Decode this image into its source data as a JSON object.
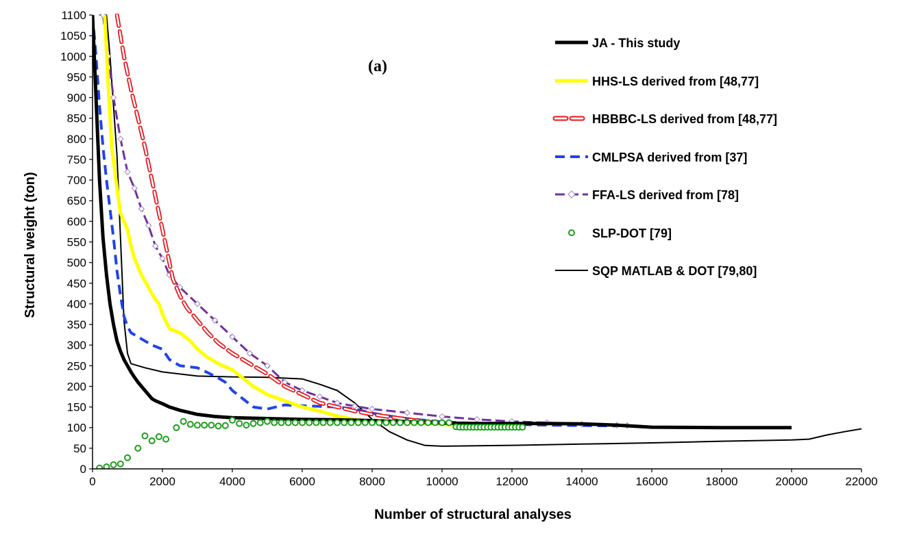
{
  "chart_data": {
    "type": "line",
    "title": "",
    "panel_label": "(a)",
    "xlabel": "Number of structural analyses",
    "ylabel": "Structural weight (ton)",
    "xlim": [
      0,
      22000
    ],
    "ylim": [
      0,
      1100
    ],
    "xticks": [
      0,
      2000,
      4000,
      6000,
      8000,
      10000,
      12000,
      14000,
      16000,
      18000,
      20000,
      22000
    ],
    "yticks": [
      0,
      50,
      100,
      150,
      200,
      250,
      300,
      350,
      400,
      450,
      500,
      550,
      600,
      650,
      700,
      750,
      800,
      850,
      900,
      950,
      1000,
      1050,
      1100
    ],
    "grid": false,
    "legend_position": "top-right",
    "series": [
      {
        "name": "JA - This study",
        "color": "#000000",
        "style": "thick-solid",
        "points": [
          [
            0,
            1100
          ],
          [
            100,
            900
          ],
          [
            200,
            700
          ],
          [
            300,
            560
          ],
          [
            400,
            470
          ],
          [
            500,
            400
          ],
          [
            600,
            350
          ],
          [
            700,
            310
          ],
          [
            800,
            285
          ],
          [
            900,
            265
          ],
          [
            1000,
            250
          ],
          [
            1100,
            235
          ],
          [
            1200,
            222
          ],
          [
            1300,
            210
          ],
          [
            1400,
            200
          ],
          [
            1500,
            190
          ],
          [
            1600,
            180
          ],
          [
            1700,
            170
          ],
          [
            1800,
            165
          ],
          [
            2000,
            158
          ],
          [
            2200,
            150
          ],
          [
            2500,
            142
          ],
          [
            3000,
            132
          ],
          [
            3500,
            127
          ],
          [
            4000,
            124
          ],
          [
            5000,
            122
          ],
          [
            6000,
            120
          ],
          [
            7000,
            119
          ],
          [
            8000,
            117
          ],
          [
            9000,
            114
          ],
          [
            10000,
            111
          ],
          [
            11000,
            110
          ],
          [
            12000,
            110
          ],
          [
            13000,
            110
          ],
          [
            14000,
            109
          ],
          [
            15000,
            106
          ],
          [
            16000,
            101
          ],
          [
            18000,
            100
          ],
          [
            20000,
            100
          ]
        ]
      },
      {
        "name": "HHS-LS derived from [48,77]",
        "color": "#ffff00",
        "style": "thick-solid",
        "points": [
          [
            350,
            1100
          ],
          [
            450,
            930
          ],
          [
            550,
            780
          ],
          [
            700,
            680
          ],
          [
            800,
            620
          ],
          [
            900,
            600
          ],
          [
            1000,
            580
          ],
          [
            1100,
            540
          ],
          [
            1200,
            510
          ],
          [
            1400,
            470
          ],
          [
            1600,
            440
          ],
          [
            1800,
            410
          ],
          [
            1900,
            400
          ],
          [
            2000,
            375
          ],
          [
            2200,
            340
          ],
          [
            2500,
            330
          ],
          [
            2800,
            310
          ],
          [
            3000,
            290
          ],
          [
            3300,
            270
          ],
          [
            3600,
            255
          ],
          [
            4000,
            240
          ],
          [
            4300,
            220
          ],
          [
            4600,
            200
          ],
          [
            5000,
            180
          ],
          [
            5500,
            165
          ],
          [
            6000,
            150
          ],
          [
            6500,
            140
          ],
          [
            7000,
            128
          ],
          [
            7500,
            120
          ],
          [
            8000,
            115
          ],
          [
            9000,
            112
          ],
          [
            10000,
            108
          ],
          [
            10500,
            105
          ]
        ]
      },
      {
        "name": "HBBBC-LS derived from [48,77]",
        "color": "#e8141b",
        "style": "thick-dashed-outline",
        "points": [
          [
            700,
            1100
          ],
          [
            900,
            1000
          ],
          [
            1100,
            920
          ],
          [
            1300,
            850
          ],
          [
            1500,
            780
          ],
          [
            1700,
            700
          ],
          [
            1800,
            660
          ],
          [
            1900,
            620
          ],
          [
            2000,
            580
          ],
          [
            2100,
            540
          ],
          [
            2200,
            500
          ],
          [
            2300,
            460
          ],
          [
            2500,
            420
          ],
          [
            2700,
            390
          ],
          [
            3000,
            360
          ],
          [
            3300,
            330
          ],
          [
            3600,
            305
          ],
          [
            4000,
            280
          ],
          [
            4500,
            255
          ],
          [
            5000,
            230
          ],
          [
            5500,
            200
          ],
          [
            6000,
            180
          ],
          [
            6500,
            160
          ],
          [
            7000,
            150
          ],
          [
            7500,
            140
          ],
          [
            8000,
            132
          ],
          [
            9000,
            120
          ],
          [
            10000,
            110
          ],
          [
            10500,
            105
          ]
        ]
      },
      {
        "name": "CMLPSA derived from [37]",
        "color": "#1e44e8",
        "style": "thick-dashed",
        "points": [
          [
            0,
            1100
          ],
          [
            100,
            1000
          ],
          [
            200,
            880
          ],
          [
            300,
            780
          ],
          [
            400,
            700
          ],
          [
            500,
            630
          ],
          [
            600,
            560
          ],
          [
            700,
            480
          ],
          [
            800,
            420
          ],
          [
            900,
            370
          ],
          [
            1000,
            345
          ],
          [
            1100,
            330
          ],
          [
            1300,
            320
          ],
          [
            1500,
            310
          ],
          [
            1700,
            300
          ],
          [
            2000,
            290
          ],
          [
            2200,
            265
          ],
          [
            2500,
            250
          ],
          [
            3000,
            245
          ],
          [
            3500,
            225
          ],
          [
            3800,
            210
          ],
          [
            4000,
            190
          ],
          [
            4300,
            170
          ],
          [
            4600,
            150
          ],
          [
            5000,
            145
          ],
          [
            5500,
            155
          ],
          [
            6000,
            153
          ],
          [
            7000,
            150
          ],
          [
            7500,
            145
          ],
          [
            8000,
            135
          ],
          [
            8500,
            128
          ],
          [
            9000,
            122
          ],
          [
            10000,
            114
          ],
          [
            11000,
            110
          ],
          [
            12000,
            108
          ],
          [
            13000,
            106
          ],
          [
            14000,
            105
          ],
          [
            15000,
            104
          ]
        ]
      },
      {
        "name": "FFA-LS derived from [78]",
        "color": "#7030a0",
        "style": "dashed-diamond",
        "points": [
          [
            300,
            1100
          ],
          [
            450,
            1000
          ],
          [
            600,
            900
          ],
          [
            800,
            800
          ],
          [
            1000,
            720
          ],
          [
            1200,
            680
          ],
          [
            1400,
            630
          ],
          [
            1600,
            590
          ],
          [
            1800,
            540
          ],
          [
            2000,
            510
          ],
          [
            2200,
            470
          ],
          [
            2500,
            440
          ],
          [
            3000,
            400
          ],
          [
            3500,
            360
          ],
          [
            4000,
            320
          ],
          [
            4500,
            280
          ],
          [
            5000,
            250
          ],
          [
            5500,
            210
          ],
          [
            6000,
            190
          ],
          [
            6500,
            175
          ],
          [
            7000,
            160
          ],
          [
            7500,
            152
          ],
          [
            8000,
            145
          ],
          [
            9000,
            136
          ],
          [
            10000,
            127
          ],
          [
            11000,
            120
          ],
          [
            12000,
            115
          ],
          [
            13000,
            112
          ],
          [
            14000,
            108
          ],
          [
            15000,
            106
          ],
          [
            15300,
            105
          ]
        ]
      },
      {
        "name": "SLP-DOT [79]",
        "color": "#1a9e1a",
        "style": "open-circle",
        "points": [
          [
            200,
            2
          ],
          [
            400,
            5
          ],
          [
            600,
            10
          ],
          [
            800,
            12
          ],
          [
            1000,
            27
          ],
          [
            1300,
            50
          ],
          [
            1500,
            80
          ],
          [
            1700,
            68
          ],
          [
            1900,
            78
          ],
          [
            2100,
            72
          ],
          [
            2400,
            100
          ],
          [
            2600,
            115
          ],
          [
            2800,
            108
          ],
          [
            3000,
            106
          ],
          [
            3200,
            106
          ],
          [
            3400,
            106
          ],
          [
            3600,
            104
          ],
          [
            3800,
            105
          ],
          [
            4000,
            118
          ],
          [
            4200,
            110
          ],
          [
            4400,
            106
          ],
          [
            4600,
            110
          ],
          [
            4800,
            112
          ],
          [
            5000,
            115
          ],
          [
            5200,
            112
          ],
          [
            5400,
            112
          ],
          [
            5600,
            112
          ],
          [
            5800,
            112
          ],
          [
            6000,
            112
          ],
          [
            6200,
            112
          ],
          [
            6400,
            112
          ],
          [
            6600,
            112
          ],
          [
            6800,
            112
          ],
          [
            7000,
            112
          ],
          [
            7200,
            112
          ],
          [
            7400,
            112
          ],
          [
            7600,
            112
          ],
          [
            7800,
            112
          ],
          [
            8000,
            112
          ],
          [
            8200,
            112
          ],
          [
            8400,
            112
          ],
          [
            8600,
            112
          ],
          [
            8800,
            112
          ],
          [
            9000,
            112
          ],
          [
            9200,
            112
          ],
          [
            9400,
            112
          ],
          [
            9600,
            112
          ],
          [
            9800,
            112
          ],
          [
            10000,
            112
          ],
          [
            10200,
            112
          ],
          [
            10400,
            102
          ],
          [
            10500,
            101
          ],
          [
            10600,
            101
          ],
          [
            10700,
            101
          ],
          [
            10800,
            101
          ],
          [
            10900,
            101
          ],
          [
            11000,
            101
          ],
          [
            11100,
            101
          ],
          [
            11200,
            101
          ],
          [
            11300,
            101
          ],
          [
            11400,
            101
          ],
          [
            11500,
            101
          ],
          [
            11600,
            101
          ],
          [
            11700,
            101
          ],
          [
            11800,
            101
          ],
          [
            11900,
            101
          ],
          [
            12000,
            101
          ],
          [
            12100,
            101
          ],
          [
            12200,
            101
          ],
          [
            12300,
            101
          ]
        ]
      },
      {
        "name": "SQP MATLAB & DOT [79,80]",
        "color": "#000000",
        "style": "thin-solid",
        "points": [
          [
            200,
            1100
          ],
          [
            400,
            1100
          ],
          [
            500,
            1000
          ],
          [
            600,
            880
          ],
          [
            700,
            760
          ],
          [
            800,
            560
          ],
          [
            900,
            360
          ],
          [
            1000,
            280
          ],
          [
            1100,
            255
          ],
          [
            1500,
            245
          ],
          [
            2000,
            235
          ],
          [
            3000,
            225
          ],
          [
            4000,
            223
          ],
          [
            5000,
            222
          ],
          [
            6000,
            218
          ],
          [
            6500,
            205
          ],
          [
            7000,
            190
          ],
          [
            7500,
            160
          ],
          [
            8000,
            120
          ],
          [
            8500,
            90
          ],
          [
            9000,
            70
          ],
          [
            9500,
            57
          ],
          [
            10000,
            55
          ],
          [
            12000,
            57
          ],
          [
            14000,
            60
          ],
          [
            16000,
            63
          ],
          [
            18000,
            67
          ],
          [
            20000,
            70
          ],
          [
            20500,
            72
          ],
          [
            21000,
            82
          ],
          [
            21500,
            90
          ],
          [
            22000,
            97
          ]
        ]
      }
    ]
  }
}
